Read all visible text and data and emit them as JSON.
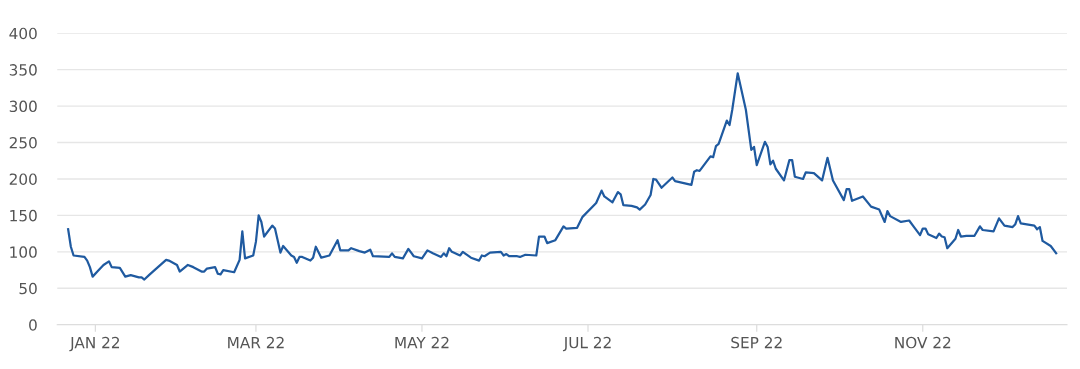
{
  "chart_data": {
    "type": "line",
    "grid": "y",
    "marker": "none",
    "line_style": "solid",
    "xlim": [
      "2021-12-18",
      "2022-12-24"
    ],
    "xticks": [
      {
        "value": "2022-01-01",
        "label": "JAN 22"
      },
      {
        "value": "2022-03-01",
        "label": "MAR 22"
      },
      {
        "value": "2022-05-01",
        "label": "MAY 22"
      },
      {
        "value": "2022-07-01",
        "label": "JUL 22"
      },
      {
        "value": "2022-09-01",
        "label": "SEP 22"
      },
      {
        "value": "2022-11-01",
        "label": "NOV 22"
      }
    ],
    "ylim": [
      0,
      400
    ],
    "yticks": [
      0,
      50,
      100,
      150,
      200,
      250,
      300,
      350,
      400
    ],
    "series": [
      {
        "color": "#1f5aa0",
        "x": [
          "2021-12-22",
          "2021-12-23",
          "2021-12-24",
          "2021-12-28",
          "2021-12-29",
          "2021-12-30",
          "2021-12-31",
          "2022-01-02",
          "2022-01-04",
          "2022-01-06",
          "2022-01-07",
          "2022-01-10",
          "2022-01-12",
          "2022-01-14",
          "2022-01-17",
          "2022-01-18",
          "2022-01-19",
          "2022-01-21",
          "2022-01-24",
          "2022-01-27",
          "2022-01-28",
          "2022-01-31",
          "2022-02-01",
          "2022-02-04",
          "2022-02-06",
          "2022-02-09",
          "2022-02-10",
          "2022-02-11",
          "2022-02-14",
          "2022-02-15",
          "2022-02-16",
          "2022-02-17",
          "2022-02-21",
          "2022-02-23",
          "2022-02-24",
          "2022-02-25",
          "2022-02-28",
          "2022-03-01",
          "2022-03-02",
          "2022-03-03",
          "2022-03-04",
          "2022-03-07",
          "2022-03-08",
          "2022-03-10",
          "2022-03-11",
          "2022-03-14",
          "2022-03-15",
          "2022-03-16",
          "2022-03-17",
          "2022-03-18",
          "2022-03-21",
          "2022-03-22",
          "2022-03-23",
          "2022-03-25",
          "2022-03-28",
          "2022-03-31",
          "2022-04-01",
          "2022-04-04",
          "2022-04-05",
          "2022-04-08",
          "2022-04-10",
          "2022-04-12",
          "2022-04-13",
          "2022-04-19",
          "2022-04-20",
          "2022-04-21",
          "2022-04-24",
          "2022-04-26",
          "2022-04-28",
          "2022-05-01",
          "2022-05-03",
          "2022-05-05",
          "2022-05-08",
          "2022-05-09",
          "2022-05-10",
          "2022-05-11",
          "2022-05-12",
          "2022-05-15",
          "2022-05-16",
          "2022-05-19",
          "2022-05-22",
          "2022-05-23",
          "2022-05-24",
          "2022-05-26",
          "2022-05-30",
          "2022-05-31",
          "2022-06-01",
          "2022-06-02",
          "2022-06-05",
          "2022-06-06",
          "2022-06-08",
          "2022-06-12",
          "2022-06-13",
          "2022-06-15",
          "2022-06-16",
          "2022-06-19",
          "2022-06-22",
          "2022-06-23",
          "2022-06-27",
          "2022-06-29",
          "2022-07-04",
          "2022-07-06",
          "2022-07-07",
          "2022-07-10",
          "2022-07-12",
          "2022-07-13",
          "2022-07-14",
          "2022-07-17",
          "2022-07-19",
          "2022-07-20",
          "2022-07-22",
          "2022-07-24",
          "2022-07-25",
          "2022-07-26",
          "2022-07-28",
          "2022-08-01",
          "2022-08-02",
          "2022-08-08",
          "2022-08-09",
          "2022-08-10",
          "2022-08-11",
          "2022-08-15",
          "2022-08-16",
          "2022-08-17",
          "2022-08-18",
          "2022-08-21",
          "2022-08-22",
          "2022-08-23",
          "2022-08-25",
          "2022-08-28",
          "2022-08-30",
          "2022-08-31",
          "2022-09-01",
          "2022-09-04",
          "2022-09-05",
          "2022-09-06",
          "2022-09-07",
          "2022-09-08",
          "2022-09-11",
          "2022-09-13",
          "2022-09-14",
          "2022-09-15",
          "2022-09-18",
          "2022-09-19",
          "2022-09-22",
          "2022-09-25",
          "2022-09-27",
          "2022-09-29",
          "2022-10-03",
          "2022-10-04",
          "2022-10-05",
          "2022-10-06",
          "2022-10-10",
          "2022-10-13",
          "2022-10-16",
          "2022-10-18",
          "2022-10-19",
          "2022-10-20",
          "2022-10-24",
          "2022-10-27",
          "2022-10-29",
          "2022-10-31",
          "2022-11-01",
          "2022-11-02",
          "2022-11-03",
          "2022-11-06",
          "2022-11-07",
          "2022-11-08",
          "2022-11-09",
          "2022-11-10",
          "2022-11-13",
          "2022-11-14",
          "2022-11-15",
          "2022-11-17",
          "2022-11-20",
          "2022-11-22",
          "2022-11-23",
          "2022-11-27",
          "2022-11-29",
          "2022-12-01",
          "2022-12-04",
          "2022-12-05",
          "2022-12-06",
          "2022-12-07",
          "2022-12-12",
          "2022-12-13",
          "2022-12-14",
          "2022-12-15",
          "2022-12-18",
          "2022-12-20"
        ],
        "values": [
          131,
          107,
          95,
          93,
          88,
          79,
          66,
          74,
          82,
          87,
          79,
          78,
          66,
          68,
          65,
          65,
          62,
          69,
          79,
          89,
          88,
          82,
          73,
          82,
          79,
          73,
          73,
          77,
          79,
          70,
          69,
          75,
          72,
          89,
          128,
          91,
          95,
          114,
          150,
          141,
          121,
          136,
          132,
          99,
          108,
          95,
          93,
          85,
          93,
          93,
          88,
          92,
          107,
          92,
          95,
          116,
          102,
          102,
          105,
          101,
          99,
          103,
          94,
          93,
          98,
          93,
          91,
          104,
          94,
          91,
          102,
          98,
          93,
          98,
          94,
          105,
          100,
          95,
          100,
          92,
          88,
          95,
          94,
          99,
          100,
          95,
          97,
          94,
          94,
          93,
          96,
          95,
          121,
          121,
          112,
          116,
          135,
          132,
          133,
          148,
          167,
          184,
          176,
          168,
          182,
          179,
          164,
          163,
          161,
          158,
          165,
          178,
          200,
          199,
          188,
          202,
          197,
          192,
          210,
          212,
          211,
          231,
          230,
          245,
          248,
          280,
          274,
          295,
          345,
          295,
          240,
          244,
          219,
          251,
          244,
          220,
          225,
          214,
          198,
          226,
          226,
          203,
          200,
          209,
          208,
          198,
          229,
          198,
          171,
          186,
          186,
          170,
          176,
          162,
          158,
          141,
          156,
          149,
          141,
          143,
          133,
          123,
          132,
          132,
          124,
          119,
          125,
          121,
          120,
          105,
          118,
          130,
          121,
          122,
          122,
          135,
          130,
          128,
          146,
          136,
          134,
          138,
          149,
          139,
          136,
          131,
          134,
          115,
          108,
          98
        ]
      }
    ]
  }
}
